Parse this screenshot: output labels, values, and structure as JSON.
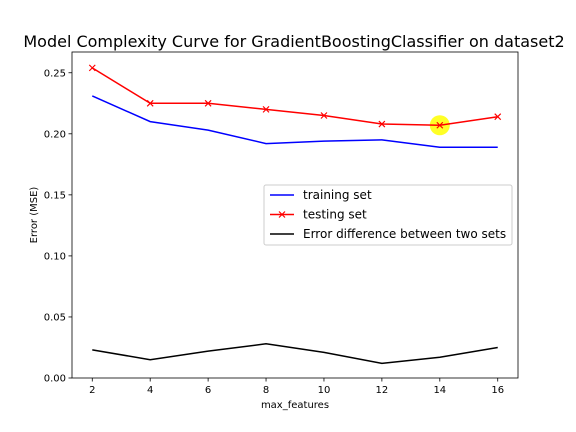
{
  "chart_data": {
    "type": "line",
    "title": "Model Complexity Curve for GradientBoostingClassifier on dataset2",
    "xlabel": "max_features",
    "ylabel": "Error (MSE)",
    "x": [
      2,
      4,
      6,
      8,
      10,
      12,
      14,
      16
    ],
    "xticks": [
      "2",
      "4",
      "6",
      "8",
      "10",
      "12",
      "14",
      "16"
    ],
    "yticks": [
      "0.00",
      "0.05",
      "0.10",
      "0.15",
      "0.20",
      "0.25"
    ],
    "xlim": [
      1.3,
      16.7
    ],
    "ylim": [
      0.0,
      0.267
    ],
    "legend_position": "center-right",
    "series": [
      {
        "name": "training set",
        "color": "#0000ff",
        "marker": "none",
        "values": [
          0.231,
          0.21,
          0.203,
          0.192,
          0.194,
          0.195,
          0.189,
          0.189
        ]
      },
      {
        "name": "testing set",
        "color": "#ff0000",
        "marker": "x",
        "values": [
          0.254,
          0.225,
          0.225,
          0.22,
          0.215,
          0.208,
          0.207,
          0.214
        ]
      },
      {
        "name": "Error difference between two sets",
        "color": "#000000",
        "marker": "none",
        "values": [
          0.023,
          0.015,
          0.022,
          0.028,
          0.021,
          0.012,
          0.017,
          0.025
        ]
      }
    ],
    "highlight": {
      "x": 14,
      "y": 0.207,
      "color": "#ffff00"
    }
  }
}
